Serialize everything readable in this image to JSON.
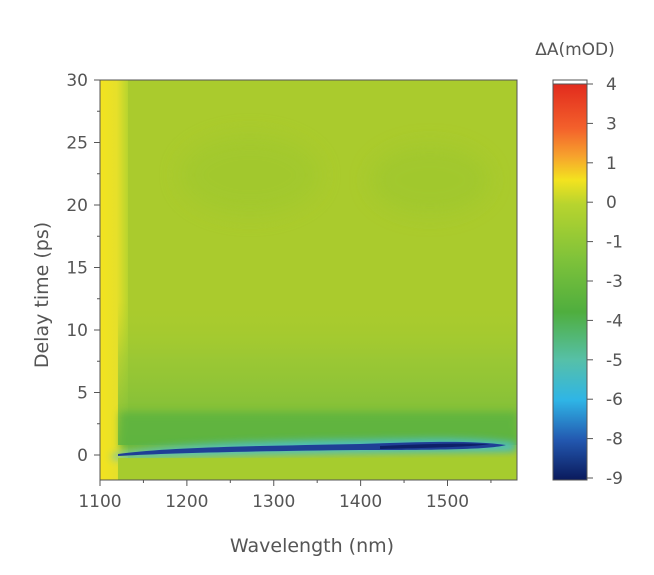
{
  "chart_data": {
    "type": "heatmap",
    "xlabel": "Wavelength (nm)",
    "ylabel": "Delay time (ps)",
    "xlim": [
      1100,
      1580
    ],
    "ylim": [
      -2,
      30
    ],
    "x_ticks": [
      1100,
      1200,
      1300,
      1400,
      1500
    ],
    "y_ticks": [
      0,
      5,
      10,
      15,
      20,
      25,
      30
    ],
    "colorbar": {
      "label": "ΔA(mOD)",
      "range": [
        -9,
        4
      ],
      "ticks": [
        4,
        3,
        1,
        0,
        -1,
        -3,
        -4,
        -5,
        -6,
        -8,
        -9
      ],
      "colors": {
        "max": "#e0261c",
        "high": "#f5a030",
        "pos1": "#f3e31f",
        "zero": "#b5cf2e",
        "neg": "#4fae3e",
        "mid": "#56c0a8",
        "cyan": "#2fb5e6",
        "low": "#1f4f9e",
        "min": "#0a1a5c"
      }
    },
    "features": [
      {
        "description": "positive band near 1100-1120 nm",
        "x": [
          1100,
          1120
        ],
        "dA": 0.8
      },
      {
        "description": "bleach band near time zero",
        "x": [
          1120,
          1575
        ],
        "t": [
          0,
          1
        ],
        "dA": -9
      }
    ]
  }
}
